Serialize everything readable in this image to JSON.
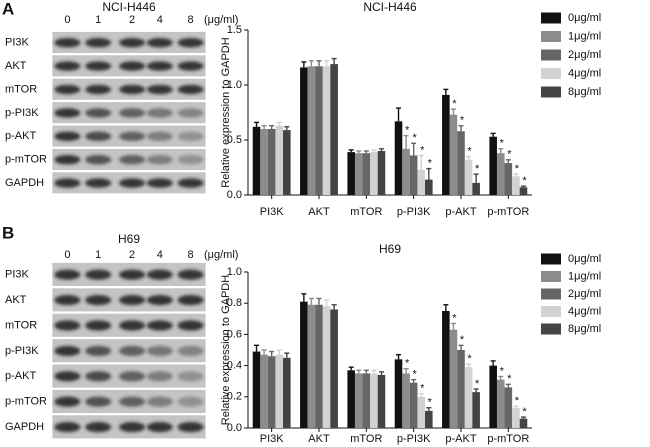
{
  "figure_labels": [
    "A",
    "B"
  ],
  "blots": [
    {
      "title": "NCI-H446",
      "lanes": [
        "0",
        "1",
        "2",
        "4",
        "8"
      ],
      "unit": "(μg/ml)",
      "rows": [
        "PI3K",
        "AKT",
        "mTOR",
        "p-PI3K",
        "p-AKT",
        "p-mTOR",
        "GAPDH"
      ]
    },
    {
      "title": "H69",
      "lanes": [
        "0",
        "1",
        "2",
        "4",
        "8"
      ],
      "unit": "(μg/ml)",
      "rows": [
        "PI3K",
        "AKT",
        "mTOR",
        "p-PI3K",
        "p-AKT",
        "p-mTOR",
        "GAPDH"
      ]
    }
  ],
  "chart_data": [
    {
      "type": "bar",
      "title": "NCI-H446",
      "ylabel": "Relative expression  to GAPDH",
      "categories": [
        "PI3K",
        "AKT",
        "mTOR",
        "p-PI3K",
        "p-AKT",
        "p-mTOR"
      ],
      "ylim": [
        0,
        1.5
      ],
      "yticks": [
        {
          "value": 0,
          "label": "0.0"
        },
        {
          "value": 0.5,
          "label": "0.5"
        },
        {
          "value": 1,
          "label": "1.0"
        },
        {
          "value": 1.5,
          "label": "1.5"
        }
      ],
      "legend": "right",
      "series": [
        {
          "name": "0μg/ml",
          "color": "#111111",
          "values": [
            0.62,
            1.16,
            0.39,
            0.67,
            0.91,
            0.53
          ],
          "errors": [
            0.04,
            0.05,
            0.02,
            0.12,
            0.05,
            0.03
          ],
          "significance": [
            null,
            null,
            null,
            null,
            null,
            null
          ]
        },
        {
          "name": "1μg/ml",
          "color": "#8c8c8c",
          "values": [
            0.6,
            1.17,
            0.38,
            0.42,
            0.73,
            0.38
          ],
          "errors": [
            0.03,
            0.05,
            0.02,
            0.12,
            0.05,
            0.04
          ],
          "significance": [
            null,
            null,
            null,
            "*",
            "*",
            "*"
          ]
        },
        {
          "name": "2μg/ml",
          "color": "#666666",
          "values": [
            0.6,
            1.17,
            0.38,
            0.36,
            0.58,
            0.29
          ],
          "errors": [
            0.03,
            0.05,
            0.02,
            0.11,
            0.05,
            0.03
          ],
          "significance": [
            null,
            null,
            null,
            "*",
            "*",
            "*"
          ]
        },
        {
          "name": "4μg/ml",
          "color": "#d2d2d2",
          "values": [
            0.63,
            1.17,
            0.39,
            0.23,
            0.32,
            0.17
          ],
          "errors": [
            0.03,
            0.05,
            0.02,
            0.13,
            0.03,
            0.02
          ],
          "significance": [
            null,
            null,
            null,
            "*",
            "*",
            "*"
          ]
        },
        {
          "name": "8μg/ml",
          "color": "#444444",
          "values": [
            0.59,
            1.19,
            0.4,
            0.14,
            0.11,
            0.07
          ],
          "errors": [
            0.03,
            0.05,
            0.02,
            0.1,
            0.08,
            0.01
          ],
          "significance": [
            null,
            null,
            null,
            "*",
            "*",
            "*"
          ]
        }
      ]
    },
    {
      "type": "bar",
      "title": "H69",
      "ylabel": "Relative expression  to GAPDH",
      "categories": [
        "PI3K",
        "AKT",
        "mTOR",
        "p-PI3K",
        "p-AKT",
        "p-mTOR"
      ],
      "ylim": [
        0,
        1
      ],
      "yticks": [
        {
          "value": 0,
          "label": "0.0"
        },
        0.2,
        0.4,
        0.6,
        0.8,
        {
          "value": 1,
          "label": "1.0"
        }
      ],
      "legend": "right",
      "series": [
        {
          "name": "0μg/ml",
          "color": "#111111",
          "values": [
            0.49,
            0.81,
            0.37,
            0.44,
            0.75,
            0.4
          ],
          "errors": [
            0.04,
            0.05,
            0.02,
            0.03,
            0.04,
            0.03
          ],
          "significance": [
            null,
            null,
            null,
            null,
            null,
            null
          ]
        },
        {
          "name": "1μg/ml",
          "color": "#8c8c8c",
          "values": [
            0.47,
            0.79,
            0.35,
            0.35,
            0.63,
            0.31
          ],
          "errors": [
            0.03,
            0.04,
            0.02,
            0.03,
            0.04,
            0.02
          ],
          "significance": [
            null,
            null,
            null,
            "*",
            "*",
            "*"
          ]
        },
        {
          "name": "2μg/ml",
          "color": "#666666",
          "values": [
            0.46,
            0.79,
            0.35,
            0.29,
            0.5,
            0.26
          ],
          "errors": [
            0.03,
            0.04,
            0.02,
            0.02,
            0.03,
            0.02
          ],
          "significance": [
            null,
            null,
            null,
            "*",
            "*",
            "*"
          ]
        },
        {
          "name": "4μg/ml",
          "color": "#d2d2d2",
          "values": [
            0.47,
            0.78,
            0.35,
            0.2,
            0.39,
            0.13
          ],
          "errors": [
            0.03,
            0.04,
            0.02,
            0.02,
            0.02,
            0.01
          ],
          "significance": [
            null,
            null,
            null,
            "*",
            "*",
            "*"
          ]
        },
        {
          "name": "8μg/ml",
          "color": "#444444",
          "values": [
            0.45,
            0.76,
            0.34,
            0.11,
            0.23,
            0.06
          ],
          "errors": [
            0.03,
            0.03,
            0.02,
            0.02,
            0.02,
            0.01
          ],
          "significance": [
            null,
            null,
            null,
            "*",
            "*",
            "*"
          ]
        }
      ]
    }
  ]
}
